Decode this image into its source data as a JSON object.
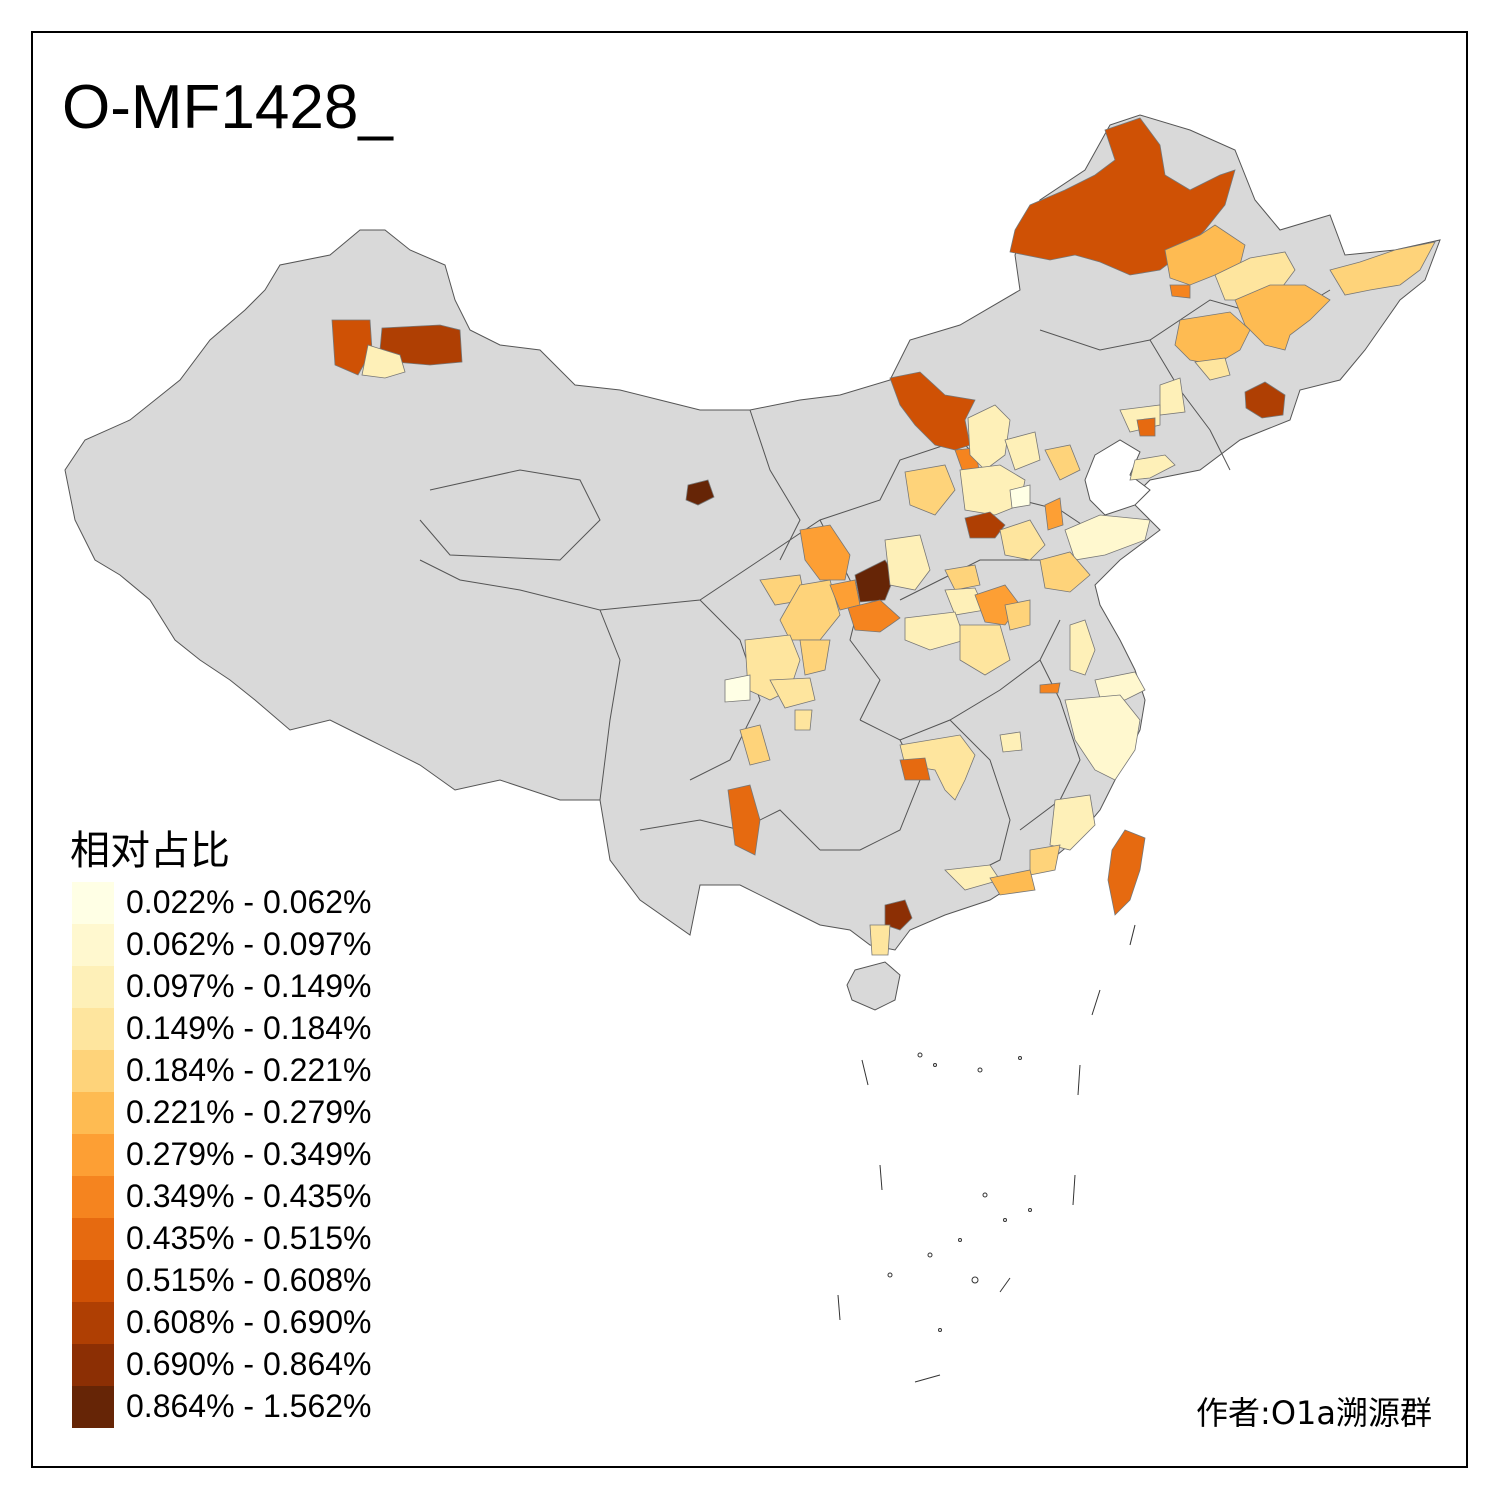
{
  "title": "O-MF1428_",
  "legend": {
    "title": "相对占比",
    "items": [
      {
        "label": "0.022% - 0.062%",
        "color": "#FFFFE5"
      },
      {
        "label": "0.062% - 0.097%",
        "color": "#FFF8CF"
      },
      {
        "label": "0.097% - 0.149%",
        "color": "#FEF0B8"
      },
      {
        "label": "0.149% - 0.184%",
        "color": "#FEE59E"
      },
      {
        "label": "0.184% - 0.221%",
        "color": "#FED37A"
      },
      {
        "label": "0.221% - 0.279%",
        "color": "#FEBB52"
      },
      {
        "label": "0.279% - 0.349%",
        "color": "#FD9F34"
      },
      {
        "label": "0.349% - 0.435%",
        "color": "#F5841F"
      },
      {
        "label": "0.435% - 0.515%",
        "color": "#E66A10"
      },
      {
        "label": "0.515% - 0.608%",
        "color": "#CF5105"
      },
      {
        "label": "0.608% - 0.690%",
        "color": "#AF3F03"
      },
      {
        "label": "0.690% - 0.864%",
        "color": "#8C2F04"
      },
      {
        "label": "0.864% - 1.562%",
        "color": "#662506"
      }
    ]
  },
  "author": "作者:O1a溯源群",
  "colors": {
    "land": "#D9D9D9",
    "border": "#555555",
    "no_data": "#D9D9D9"
  }
}
